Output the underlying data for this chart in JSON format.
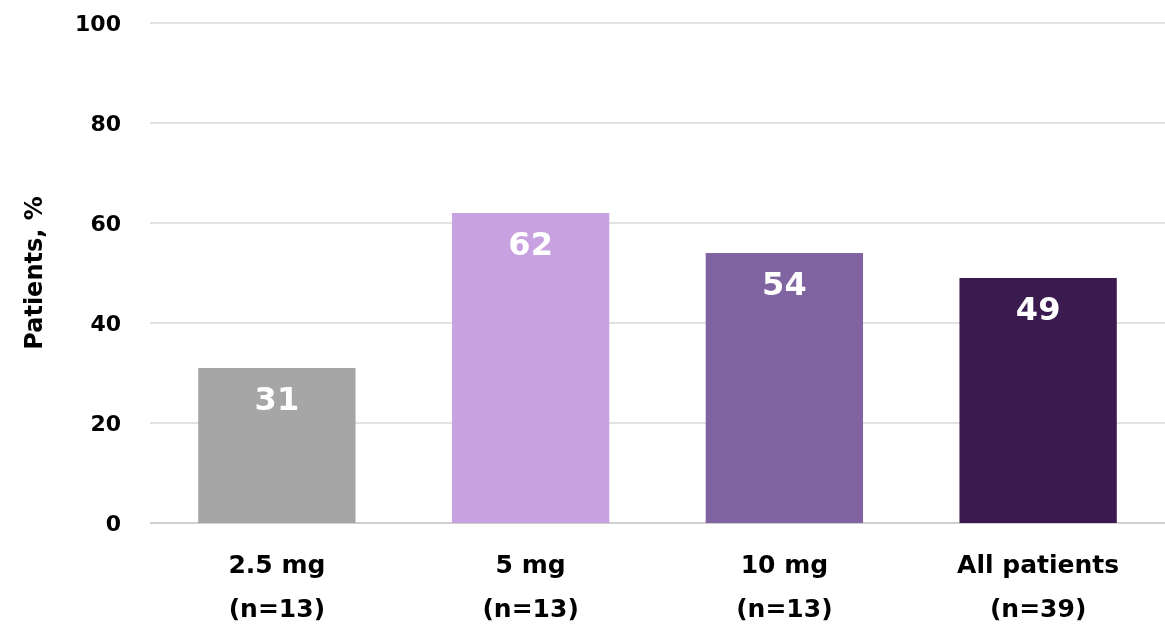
{
  "chart_data": {
    "type": "bar",
    "ylabel": "Patients, %",
    "categories": [
      "2.5 mg\n(n=13)",
      "5 mg\n(n=13)",
      "10 mg\n(n=13)",
      "All patients\n(n=39)"
    ],
    "values": [
      31,
      62,
      54,
      49
    ],
    "colors": [
      "#a6a6a6",
      "#c8a2e0",
      "#8064a2",
      "#3b1a4f"
    ],
    "ylim": [
      0,
      100
    ],
    "yticks": [
      0,
      20,
      40,
      60,
      80,
      100
    ],
    "grid": "y",
    "data_labels": true
  }
}
